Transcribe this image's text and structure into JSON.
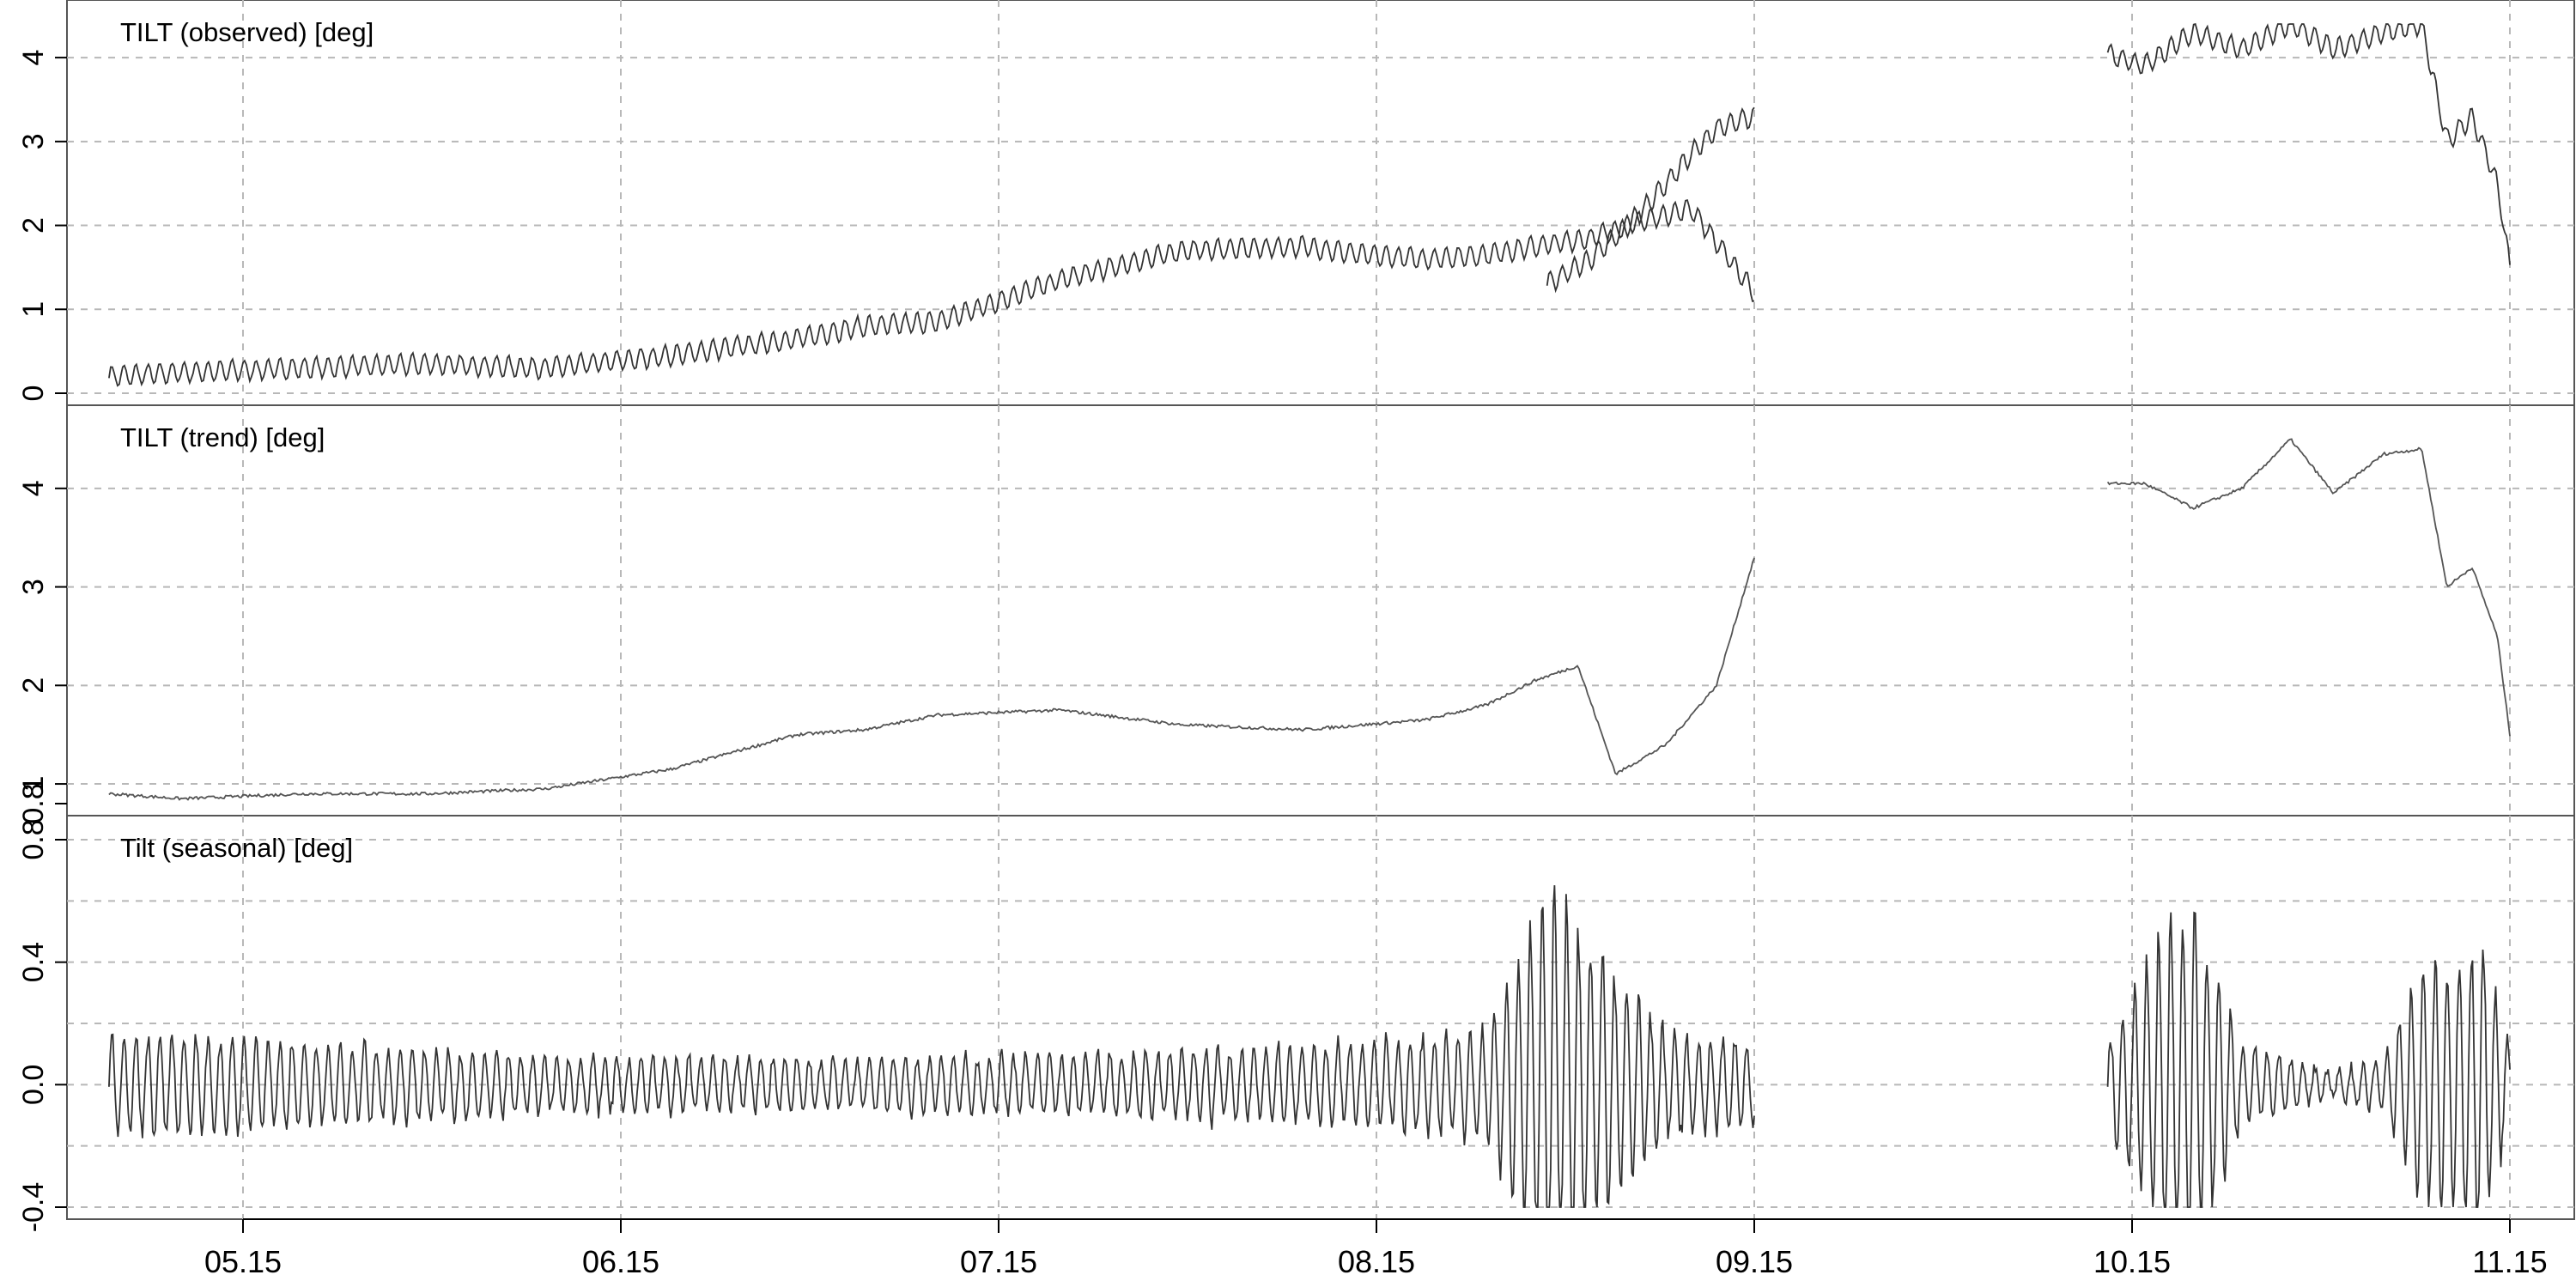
{
  "chart_data": [
    {
      "type": "line",
      "title": "TILT (observed)  [deg]",
      "xlabel": "",
      "ylabel": "",
      "x_ticks": [
        "05.15",
        "06.15",
        "07.15",
        "08.15",
        "09.15",
        "10.15",
        "11.15"
      ],
      "x_range": [
        "05.04",
        "11.15"
      ],
      "ylim": [
        0,
        4.4
      ],
      "y_ticks": [
        0,
        1,
        2,
        3,
        4
      ],
      "grid": true,
      "line_color": "#333333",
      "segments": [
        {
          "x": [
            "05.04",
            "05.10",
            "05.20",
            "05.30",
            "06.09",
            "06.19",
            "06.29",
            "07.04",
            "07.10",
            "07.20",
            "07.30",
            "08.09",
            "08.14",
            "08.19",
            "08.24",
            "08.28",
            "09.02",
            "09.06",
            "09.10",
            "09.15"
          ],
          "y": [
            0.2,
            0.25,
            0.3,
            0.35,
            0.3,
            0.45,
            0.65,
            0.8,
            0.85,
            1.35,
            1.7,
            1.75,
            1.65,
            1.6,
            1.65,
            1.75,
            1.85,
            2.05,
            2.2,
            1.2
          ]
        },
        {
          "x": [
            "08.29",
            "09.02",
            "09.05",
            "09.08",
            "09.10",
            "09.12",
            "09.15"
          ],
          "y": [
            1.3,
            1.6,
            2.0,
            2.5,
            2.85,
            3.15,
            3.3
          ]
        },
        {
          "x": [
            "10.13",
            "10.16",
            "10.20",
            "10.24",
            "10.28",
            "11.01",
            "11.05",
            "11.08",
            "11.10",
            "11.12",
            "11.14",
            "11.15"
          ],
          "y": [
            4.05,
            3.9,
            4.3,
            4.1,
            4.4,
            4.1,
            4.3,
            4.4,
            3.0,
            3.3,
            2.5,
            1.5
          ]
        }
      ]
    },
    {
      "type": "line",
      "title": "TILT (trend)  [deg]",
      "xlabel": "",
      "ylabel": "",
      "x_ticks": [
        "05.15",
        "06.15",
        "07.15",
        "08.15",
        "09.15",
        "10.15",
        "11.15"
      ],
      "x_range": [
        "05.04",
        "11.15"
      ],
      "ylim": [
        0.8,
        4.6
      ],
      "y_ticks": [
        0.8,
        1,
        2,
        3,
        4
      ],
      "grid": true,
      "line_color": "#555555",
      "segments": [
        {
          "x": [
            "05.04",
            "05.10",
            "05.20",
            "05.30",
            "06.09",
            "06.19",
            "06.29",
            "07.04",
            "07.10",
            "07.20",
            "07.30",
            "08.09",
            "08.14",
            "08.19",
            "08.24",
            "08.28",
            "09.01",
            "09.04",
            "09.08",
            "09.12",
            "09.15"
          ],
          "y": [
            0.9,
            0.85,
            0.9,
            0.9,
            0.95,
            1.15,
            1.5,
            1.55,
            1.7,
            1.75,
            1.6,
            1.55,
            1.6,
            1.65,
            1.8,
            2.05,
            2.2,
            1.1,
            1.4,
            2.0,
            3.3
          ]
        },
        {
          "x": [
            "10.13",
            "10.16",
            "10.20",
            "10.24",
            "10.28",
            "11.01",
            "11.05",
            "11.08",
            "11.10",
            "11.12",
            "11.14",
            "11.15"
          ],
          "y": [
            4.05,
            4.05,
            3.8,
            4.0,
            4.5,
            3.95,
            4.35,
            4.4,
            3.0,
            3.2,
            2.5,
            1.5
          ]
        }
      ]
    },
    {
      "type": "line",
      "title": "Tilt (seasonal)  [deg]",
      "xlabel": "",
      "ylabel": "",
      "x_ticks": [
        "05.15",
        "06.15",
        "07.15",
        "08.15",
        "09.15",
        "10.15",
        "11.15"
      ],
      "x_range": [
        "05.04",
        "11.15"
      ],
      "ylim": [
        -0.4,
        0.8
      ],
      "y_ticks": [
        -0.4,
        0.0,
        0.4,
        0.8
      ],
      "grid": true,
      "line_color": "#333333",
      "segments": [
        {
          "x": [
            "05.04",
            "05.24",
            "06.13",
            "07.03",
            "07.23",
            "08.12",
            "08.24",
            "08.29",
            "09.03",
            "09.08",
            "09.15"
          ],
          "amplitude": [
            0.2,
            0.15,
            0.1,
            0.1,
            0.12,
            0.15,
            0.2,
            0.75,
            0.5,
            0.2,
            0.15
          ]
        },
        {
          "x": [
            "10.13",
            "10.17",
            "10.20",
            "10.24",
            "11.01",
            "11.05",
            "11.08",
            "11.10",
            "11.13",
            "11.15"
          ],
          "amplitude": [
            0.15,
            0.55,
            0.7,
            0.15,
            0.05,
            0.1,
            0.45,
            0.5,
            0.55,
            0.15
          ]
        }
      ]
    }
  ]
}
